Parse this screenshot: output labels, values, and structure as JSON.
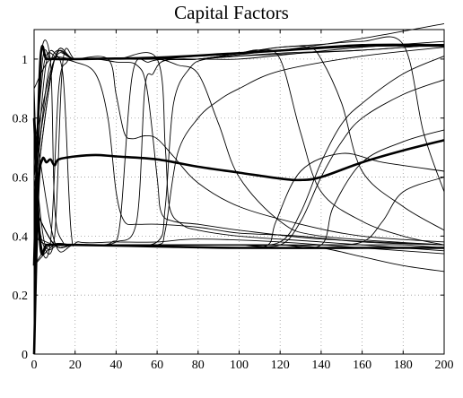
{
  "chart_data": {
    "type": "line",
    "title": "Capital Factors",
    "xlabel": "",
    "ylabel": "",
    "xlim": [
      0,
      200
    ],
    "ylim": [
      0,
      1.1
    ],
    "grid": true,
    "legend": "none",
    "x_ticks": [
      0,
      20,
      40,
      60,
      80,
      100,
      120,
      140,
      160,
      180,
      200
    ],
    "y_ticks": [
      0,
      0.2,
      0.4,
      0.6,
      0.8,
      1
    ],
    "y_tick_labels": [
      "0",
      "0.2",
      "0.4",
      "0.6",
      "0.8",
      "1"
    ],
    "series": [
      {
        "bold": true,
        "x": [
          0,
          2,
          4,
          6,
          8,
          10,
          12,
          20,
          30,
          40,
          60,
          80,
          100,
          120,
          130,
          140,
          160,
          180,
          200
        ],
        "y": [
          0.0,
          0.55,
          0.66,
          0.65,
          0.66,
          0.64,
          0.66,
          0.67,
          0.675,
          0.67,
          0.66,
          0.635,
          0.615,
          0.595,
          0.59,
          0.6,
          0.65,
          0.69,
          0.725
        ]
      },
      {
        "bold": true,
        "x": [
          0,
          3,
          6,
          10,
          20,
          60,
          100,
          160,
          200
        ],
        "y": [
          0.3,
          0.99,
          1.0,
          1.0,
          1.0,
          1.005,
          1.02,
          1.045,
          1.045
        ]
      },
      {
        "bold": true,
        "x": [
          0,
          3,
          6,
          10,
          20,
          60,
          100,
          160,
          200
        ],
        "y": [
          0.8,
          0.37,
          0.37,
          0.37,
          0.37,
          0.365,
          0.36,
          0.36,
          0.36
        ]
      },
      {
        "bold": false,
        "x": [
          0,
          3,
          8,
          10,
          14,
          20,
          40,
          60,
          80,
          100,
          120,
          140,
          160,
          180,
          200
        ],
        "y": [
          0.2,
          0.98,
          0.99,
          0.5,
          0.38,
          0.37,
          0.37,
          0.37,
          0.37,
          0.37,
          0.37,
          0.37,
          0.37,
          0.37,
          0.36
        ]
      },
      {
        "bold": false,
        "x": [
          0,
          3,
          8,
          12,
          16,
          20,
          40,
          60,
          80,
          120,
          160,
          200
        ],
        "y": [
          0.9,
          0.4,
          0.38,
          0.9,
          0.99,
          1.0,
          1.0,
          1.0,
          1.01,
          1.03,
          1.07,
          1.12
        ]
      },
      {
        "bold": false,
        "x": [
          0,
          4,
          8,
          14,
          18,
          22,
          40,
          60,
          80,
          120,
          160,
          200
        ],
        "y": [
          0.5,
          0.99,
          1.0,
          0.95,
          0.42,
          0.38,
          0.38,
          0.38,
          0.39,
          0.38,
          0.36,
          0.34
        ]
      },
      {
        "bold": false,
        "x": [
          0,
          4,
          10,
          14,
          20,
          30,
          40,
          60,
          80,
          120,
          160,
          200
        ],
        "y": [
          0.6,
          0.38,
          0.4,
          0.99,
          1.0,
          1.0,
          1.0,
          1.0,
          1.0,
          1.03,
          1.05,
          1.05
        ]
      },
      {
        "bold": false,
        "x": [
          0,
          5,
          12,
          20,
          30,
          36,
          40,
          44,
          50,
          60,
          80,
          100,
          130,
          160,
          200
        ],
        "y": [
          0.6,
          0.99,
          1.0,
          0.99,
          0.95,
          0.8,
          0.55,
          0.45,
          0.44,
          0.44,
          0.43,
          0.41,
          0.4,
          0.38,
          0.37
        ]
      },
      {
        "bold": false,
        "x": [
          0,
          5,
          12,
          20,
          30,
          38,
          42,
          48,
          56,
          64,
          70,
          80,
          120,
          160,
          200
        ],
        "y": [
          0.7,
          0.38,
          0.37,
          0.37,
          0.37,
          0.38,
          0.45,
          0.95,
          0.99,
          1.0,
          1.0,
          1.0,
          1.02,
          1.03,
          1.05
        ]
      },
      {
        "bold": false,
        "x": [
          0,
          6,
          14,
          30,
          40,
          50,
          55,
          60,
          62,
          68,
          80,
          100,
          140,
          200
        ],
        "y": [
          0.5,
          0.99,
          1.0,
          1.0,
          0.99,
          0.98,
          0.9,
          0.6,
          0.48,
          0.45,
          0.44,
          0.42,
          0.39,
          0.37
        ]
      },
      {
        "bold": false,
        "x": [
          0,
          6,
          14,
          30,
          40,
          50,
          54,
          58,
          62,
          70,
          80,
          100,
          130,
          160,
          200
        ],
        "y": [
          0.4,
          0.37,
          0.37,
          0.37,
          0.38,
          0.45,
          0.9,
          0.95,
          0.99,
          1.0,
          1.0,
          1.0,
          1.02,
          1.04,
          1.06
        ]
      },
      {
        "bold": false,
        "x": [
          0,
          8,
          20,
          40,
          60,
          64,
          66,
          72,
          80,
          100,
          140,
          200
        ],
        "y": [
          0.9,
          1.0,
          1.0,
          1.0,
          1.0,
          0.7,
          0.5,
          0.44,
          0.42,
          0.4,
          0.38,
          0.35
        ]
      },
      {
        "bold": false,
        "x": [
          0,
          8,
          20,
          40,
          60,
          64,
          68,
          76,
          84,
          100,
          130,
          160,
          200
        ],
        "y": [
          0.3,
          0.37,
          0.37,
          0.37,
          0.38,
          0.5,
          0.85,
          0.97,
          1.0,
          1.01,
          1.02,
          1.03,
          1.05
        ]
      },
      {
        "bold": false,
        "x": [
          0,
          8,
          20,
          36,
          40,
          44,
          48,
          54,
          60,
          68,
          80,
          100,
          130,
          160,
          200
        ],
        "y": [
          0.5,
          0.99,
          1.0,
          1.0,
          0.88,
          0.75,
          0.73,
          0.74,
          0.73,
          0.67,
          0.58,
          0.5,
          0.44,
          0.4,
          0.38
        ]
      },
      {
        "bold": false,
        "x": [
          0,
          10,
          20,
          40,
          60,
          70,
          80,
          90,
          100,
          120,
          140,
          200
        ],
        "y": [
          0.6,
          1.0,
          1.0,
          1.0,
          1.0,
          0.98,
          0.95,
          0.78,
          0.6,
          0.45,
          0.4,
          0.37
        ]
      },
      {
        "bold": false,
        "x": [
          0,
          10,
          20,
          40,
          60,
          64,
          70,
          80,
          90,
          100,
          120,
          160,
          200
        ],
        "y": [
          0.8,
          0.38,
          0.37,
          0.37,
          0.37,
          0.42,
          0.68,
          0.8,
          0.86,
          0.9,
          0.96,
          1.01,
          1.04
        ]
      },
      {
        "bold": false,
        "x": [
          0,
          10,
          20,
          40,
          60,
          80,
          100,
          110,
          120,
          130,
          140,
          160,
          180,
          200
        ],
        "y": [
          0.7,
          1.0,
          1.0,
          1.0,
          1.0,
          1.0,
          1.02,
          1.03,
          1.0,
          0.75,
          0.55,
          0.45,
          0.4,
          0.37
        ]
      },
      {
        "bold": false,
        "x": [
          0,
          10,
          20,
          40,
          60,
          80,
          100,
          114,
          118,
          130,
          150,
          170,
          200
        ],
        "y": [
          0.4,
          0.37,
          0.37,
          0.37,
          0.37,
          0.37,
          0.37,
          0.37,
          0.45,
          0.62,
          0.68,
          0.65,
          0.62
        ]
      },
      {
        "bold": false,
        "x": [
          0,
          10,
          20,
          40,
          60,
          80,
          100,
          120,
          140,
          146,
          160,
          180,
          200
        ],
        "y": [
          0.3,
          0.37,
          0.37,
          0.37,
          0.37,
          0.37,
          0.37,
          0.37,
          0.37,
          0.5,
          0.65,
          0.72,
          0.76
        ]
      },
      {
        "bold": false,
        "x": [
          0,
          10,
          20,
          40,
          60,
          80,
          100,
          120,
          134,
          140,
          150,
          160,
          180,
          200
        ],
        "y": [
          0.5,
          1.0,
          1.0,
          1.0,
          1.0,
          1.0,
          1.02,
          1.04,
          1.04,
          1.0,
          0.85,
          0.62,
          0.5,
          0.42
        ]
      },
      {
        "bold": false,
        "x": [
          0,
          10,
          20,
          40,
          60,
          80,
          100,
          120,
          130,
          140,
          150,
          160,
          180,
          200
        ],
        "y": [
          0.5,
          0.37,
          0.37,
          0.37,
          0.37,
          0.37,
          0.37,
          0.38,
          0.48,
          0.65,
          0.78,
          0.85,
          0.95,
          1.01
        ]
      },
      {
        "bold": false,
        "x": [
          0,
          10,
          20,
          40,
          60,
          80,
          100,
          120,
          130,
          140,
          150,
          160,
          180,
          200
        ],
        "y": [
          0.5,
          0.37,
          0.37,
          0.37,
          0.37,
          0.37,
          0.37,
          0.37,
          0.45,
          0.6,
          0.72,
          0.8,
          0.88,
          0.93
        ]
      },
      {
        "bold": false,
        "x": [
          0,
          10,
          20,
          40,
          60,
          80,
          100,
          120,
          140,
          160,
          170,
          180,
          200
        ],
        "y": [
          0.5,
          0.37,
          0.37,
          0.37,
          0.37,
          0.37,
          0.37,
          0.37,
          0.37,
          0.38,
          0.45,
          0.55,
          0.6
        ]
      },
      {
        "bold": false,
        "x": [
          0,
          10,
          20,
          40,
          60,
          80,
          100,
          120,
          140,
          160,
          180,
          190,
          200
        ],
        "y": [
          0.5,
          1.0,
          1.0,
          1.0,
          1.0,
          1.0,
          1.02,
          1.04,
          1.05,
          1.06,
          1.05,
          0.75,
          0.55
        ]
      },
      {
        "bold": false,
        "x": [
          0,
          10,
          20,
          40,
          60,
          80,
          100,
          120,
          140,
          160,
          180,
          200
        ],
        "y": [
          0.5,
          0.37,
          0.37,
          0.37,
          0.37,
          0.37,
          0.37,
          0.37,
          0.36,
          0.33,
          0.3,
          0.28
        ]
      }
    ]
  }
}
